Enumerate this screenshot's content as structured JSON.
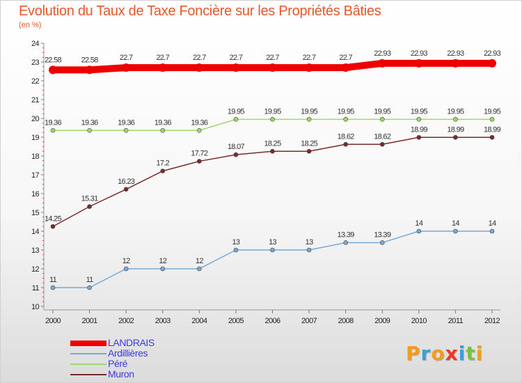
{
  "header": {
    "title": "Evolution du Taux de Taxe Foncière sur les Propriétés Bâties",
    "subtitle": "(en %)"
  },
  "logo": {
    "text": "Proxiti",
    "letters": [
      {
        "char": "P",
        "color": "#f39c1e"
      },
      {
        "char": "r",
        "color": "#3aa0d8"
      },
      {
        "char": "o",
        "color": "#f39c1e"
      },
      {
        "char": "x",
        "color": "#e8392b"
      },
      {
        "char": "i",
        "color": "#3aa0d8"
      },
      {
        "char": "t",
        "color": "#7cc242"
      },
      {
        "char": "i",
        "color": "#f39c1e"
      }
    ]
  },
  "chart_data": {
    "type": "line",
    "x": [
      "2000",
      "2001",
      "2002",
      "2003",
      "2004",
      "2005",
      "2006",
      "2007",
      "2008",
      "2009",
      "2010",
      "2011",
      "2012"
    ],
    "ylim": [
      10,
      24
    ],
    "yticks": [
      "10",
      "11",
      "12",
      "13",
      "14",
      "15",
      "16",
      "17",
      "18",
      "19",
      "20",
      "21",
      "22",
      "23",
      "24"
    ],
    "grid": false,
    "legend_position": "bottom-left",
    "series": [
      {
        "name": "LANDRAIS",
        "color": "#ee0000",
        "values": [
          22.58,
          22.58,
          22.7,
          22.7,
          22.7,
          22.7,
          22.7,
          22.7,
          22.7,
          22.93,
          22.93,
          22.93,
          22.93
        ],
        "labels": [
          "22.58",
          "22.58",
          "22.7",
          "22.7",
          "22.7",
          "22.7",
          "22.7",
          "22.7",
          "22.7",
          "22.93",
          "22.93",
          "22.93",
          "22.93"
        ]
      },
      {
        "name": "Ardillières",
        "color": "#7aa8d2",
        "values": [
          11,
          11,
          12,
          12,
          12,
          13,
          13,
          13,
          13.39,
          13.39,
          14,
          14,
          14
        ],
        "labels": [
          "11",
          "11",
          "12",
          "12",
          "12",
          "13",
          "13",
          "13",
          "13.39",
          "13.39",
          "14",
          "14",
          "14"
        ]
      },
      {
        "name": "Péré",
        "color": "#9ed86a",
        "values": [
          19.36,
          19.36,
          19.36,
          19.36,
          19.36,
          19.95,
          19.95,
          19.95,
          19.95,
          19.95,
          19.95,
          19.95,
          19.95
        ],
        "labels": [
          "19.36",
          "19.36",
          "19.36",
          "19.36",
          "19.36",
          "19.95",
          "19.95",
          "19.95",
          "19.95",
          "19.95",
          "19.95",
          "19.95",
          "19.95"
        ]
      },
      {
        "name": "Muron",
        "color": "#7a2a2a",
        "values": [
          14.25,
          15.31,
          16.23,
          17.2,
          17.72,
          18.07,
          18.25,
          18.25,
          18.62,
          18.62,
          18.99,
          18.99,
          18.99
        ],
        "labels": [
          "14.25",
          "15.31",
          "16.23",
          "17.2",
          "17.72",
          "18.07",
          "18.25",
          "18.25",
          "18.62",
          "18.62",
          "18.99",
          "18.99",
          "18.99"
        ]
      }
    ]
  }
}
